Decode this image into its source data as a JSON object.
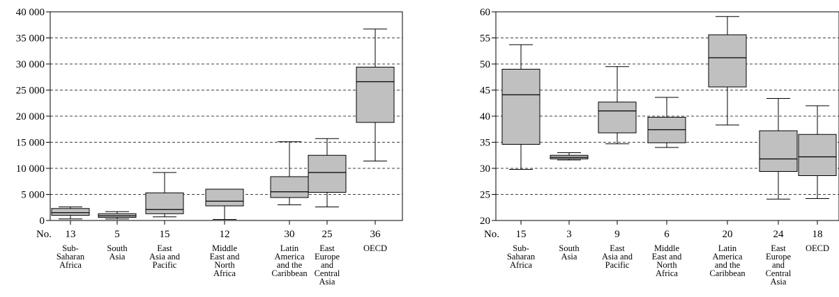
{
  "chart_data": [
    {
      "type": "boxplot",
      "ylim": [
        0,
        40000
      ],
      "yticks": [
        0,
        5000,
        10000,
        15000,
        20000,
        25000,
        30000,
        35000,
        40000
      ],
      "ytick_labels": [
        "0",
        "5 000",
        "10 000",
        "15 000",
        "20 000",
        "25 000",
        "30 000",
        "35 000",
        "40 000"
      ],
      "grid": "horizontal-dashed",
      "count_label": "No.",
      "categories": [
        {
          "label": [
            "Sub-",
            "Saharan",
            "Africa"
          ],
          "n": "13",
          "min": 300,
          "q1": 1000,
          "median": 1500,
          "q3": 2300,
          "max": 2600
        },
        {
          "label": [
            "South",
            "Asia"
          ],
          "n": "5",
          "min": 300,
          "q1": 600,
          "median": 900,
          "q3": 1300,
          "max": 1700
        },
        {
          "label": [
            "East",
            "Asia and",
            "Pacific"
          ],
          "n": "15",
          "min": 700,
          "q1": 1300,
          "median": 2100,
          "q3": 5300,
          "max": 9200
        },
        {
          "label": [
            "Middle",
            "East and",
            "North",
            "Africa"
          ],
          "n": "12",
          "min": 200,
          "q1": 2800,
          "median": 3700,
          "q3": 6000,
          "max": 6000
        },
        {
          "label": [
            "Latin",
            "America",
            "and the",
            "Caribbean"
          ],
          "n": "30",
          "min": 3000,
          "q1": 4400,
          "median": 5500,
          "q3": 8400,
          "max": 15100
        },
        {
          "label": [
            "East",
            "Europe",
            "and",
            "Central",
            "Asia"
          ],
          "n": "25",
          "min": 2600,
          "q1": 5400,
          "median": 9200,
          "q3": 12500,
          "max": 15700
        },
        {
          "label": [
            "OECD"
          ],
          "n": "36",
          "min": 11400,
          "q1": 18800,
          "median": 26600,
          "q3": 29400,
          "max": 36700
        }
      ]
    },
    {
      "type": "boxplot",
      "ylim": [
        20,
        60
      ],
      "yticks": [
        20,
        25,
        30,
        35,
        40,
        45,
        50,
        55,
        60
      ],
      "ytick_labels": [
        "20",
        "25",
        "30",
        "35",
        "40",
        "45",
        "50",
        "55",
        "60"
      ],
      "grid": "horizontal-dashed",
      "count_label": "No.",
      "categories": [
        {
          "label": [
            "Sub-",
            "Saharan",
            "Africa"
          ],
          "n": "15",
          "min": 29.8,
          "q1": 34.6,
          "median": 44.1,
          "q3": 49.0,
          "max": 53.7
        },
        {
          "label": [
            "South",
            "Asia"
          ],
          "n": "3",
          "min": 31.6,
          "q1": 31.8,
          "median": 32.1,
          "q3": 32.5,
          "max": 33.0
        },
        {
          "label": [
            "East",
            "Asia and",
            "Pacific"
          ],
          "n": "9",
          "min": 34.7,
          "q1": 36.8,
          "median": 41.0,
          "q3": 42.7,
          "max": 49.5
        },
        {
          "label": [
            "Middle",
            "East and",
            "North",
            "Africa"
          ],
          "n": "6",
          "min": 34.0,
          "q1": 34.9,
          "median": 37.4,
          "q3": 39.8,
          "max": 43.6
        },
        {
          "label": [
            "Latin",
            "America",
            "and the",
            "Caribbean"
          ],
          "n": "20",
          "min": 38.3,
          "q1": 45.6,
          "median": 51.2,
          "q3": 55.6,
          "max": 59.1
        },
        {
          "label": [
            "East",
            "Europe",
            "and",
            "Central",
            "Asia"
          ],
          "n": "24",
          "min": 24.1,
          "q1": 29.4,
          "median": 31.8,
          "q3": 37.2,
          "max": 43.4
        },
        {
          "label": [
            "OECD"
          ],
          "n": "18",
          "min": 24.2,
          "q1": 28.6,
          "median": 32.2,
          "q3": 36.5,
          "max": 42.0
        }
      ]
    }
  ],
  "colors": {
    "box_fill": "#c0c0c0",
    "stroke": "#000000",
    "background": "#ffffff"
  }
}
